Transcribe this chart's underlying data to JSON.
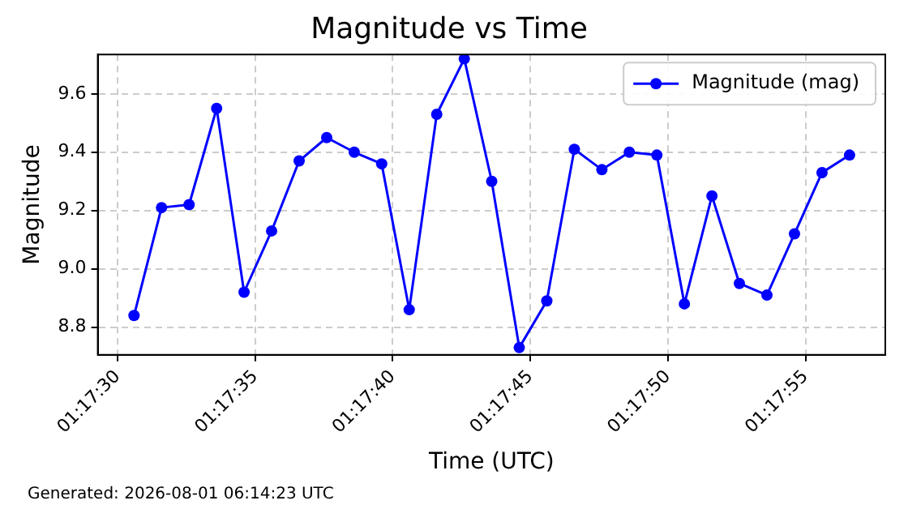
{
  "chart_data": {
    "type": "line",
    "title": "Magnitude vs Time",
    "xlabel": "Time (UTC)",
    "ylabel": "Magnitude",
    "x": [
      1.291833,
      1.292111,
      1.292389,
      1.292667,
      1.292944,
      1.293222,
      1.2935,
      1.293778,
      1.294056,
      1.294333,
      1.294611,
      1.294889,
      1.295167,
      1.295444,
      1.295722,
      1.296,
      1.296278,
      1.296556,
      1.296833,
      1.297111,
      1.297389,
      1.297667,
      1.297944,
      1.298222,
      1.2985,
      1.298778,
      1.299056
    ],
    "series": [
      {
        "name": "Magnitude (mag)",
        "color": "#0000ff",
        "values": [
          8.84,
          9.21,
          9.22,
          9.55,
          8.92,
          9.13,
          9.37,
          9.45,
          9.4,
          9.36,
          8.86,
          9.53,
          9.72,
          9.3,
          8.73,
          8.89,
          9.41,
          9.34,
          9.4,
          9.39,
          8.88,
          9.25,
          8.95,
          8.91,
          9.12,
          9.33,
          9.39
        ]
      }
    ],
    "xlim": [
      1.291467,
      1.299417
    ],
    "xticks": [
      {
        "value": 1.291667,
        "label": "01:17:30"
      },
      {
        "value": 1.293056,
        "label": "01:17:35"
      },
      {
        "value": 1.294444,
        "label": "01:17:40"
      },
      {
        "value": 1.295833,
        "label": "01:17:45"
      },
      {
        "value": 1.297222,
        "label": "01:17:50"
      },
      {
        "value": 1.298611,
        "label": "01:17:55"
      }
    ],
    "ylim": [
      8.705,
      9.735
    ],
    "yticks": [
      {
        "value": 8.8,
        "label": "8.8"
      },
      {
        "value": 9.0,
        "label": "9.0"
      },
      {
        "value": 9.2,
        "label": "9.2"
      },
      {
        "value": 9.4,
        "label": "9.4"
      },
      {
        "value": 9.6,
        "label": "9.6"
      }
    ],
    "grid": true,
    "legend": "top right",
    "marker": "circle",
    "line_style": "solid",
    "annotations": [
      "Generated: 2026-08-01 06:14:23 UTC"
    ]
  }
}
